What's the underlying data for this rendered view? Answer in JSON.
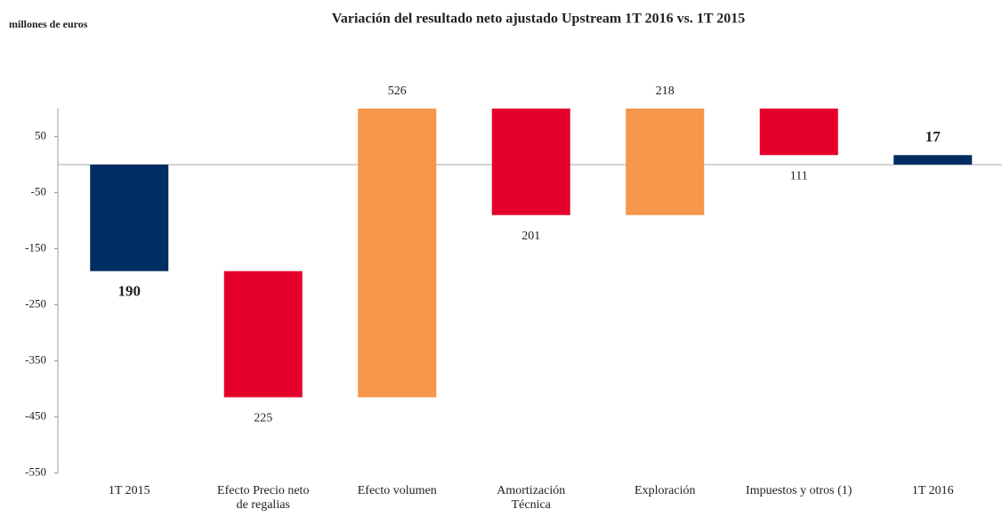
{
  "chart_data": {
    "type": "waterfall",
    "title": "Variación del resultado neto ajustado Upstream 1T 2016 vs. 1T 2015",
    "unit_label": "millones de euros",
    "categories": [
      "1T 2015",
      "Efecto Precio neto de regalias",
      "Efecto volumen",
      "Amortización Técnica",
      "Exploración",
      "Impuestos y otros (1)",
      "1T 2016"
    ],
    "values": [
      -190,
      -225,
      526,
      -201,
      218,
      -111,
      17
    ],
    "value_labels": [
      "190",
      "225",
      "526",
      "201",
      "218",
      "111",
      "17"
    ],
    "measure": [
      "total",
      "relative",
      "relative",
      "relative",
      "relative",
      "relative",
      "total"
    ],
    "colors": [
      "#002d62",
      "#e4002b",
      "#f5964a",
      "#e4002b",
      "#f5964a",
      "#e4002b",
      "#002d62"
    ],
    "ylim": [
      -550,
      100
    ],
    "yticks": [
      50,
      -50,
      -150,
      -250,
      -350,
      -450,
      -550
    ]
  }
}
